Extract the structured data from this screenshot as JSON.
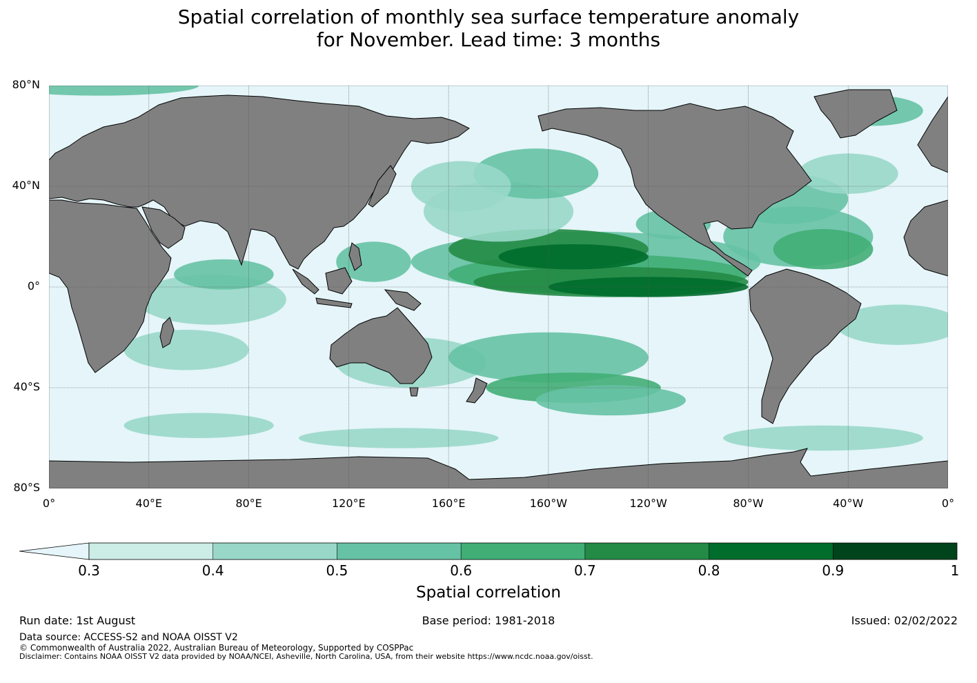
{
  "title": {
    "line1": "Spatial correlation of monthly sea surface temperature anomaly",
    "line2": "for November. Lead time: 3 months"
  },
  "map": {
    "projection": "equirectangular",
    "lon_range": [
      0,
      360
    ],
    "lat_range": [
      -80,
      80
    ],
    "ocean_color": "#e5f5f9",
    "land_color": "#808080",
    "gridlines": true,
    "lat_ticks": [
      {
        "label": "80°N",
        "lat": 80
      },
      {
        "label": "40°N",
        "lat": 40
      },
      {
        "label": "0°",
        "lat": 0
      },
      {
        "label": "40°S",
        "lat": -40
      },
      {
        "label": "80°S",
        "lat": -80
      }
    ],
    "lon_ticks": [
      {
        "label": "0°",
        "lon": 0
      },
      {
        "label": "40°E",
        "lon": 40
      },
      {
        "label": "80°E",
        "lon": 80
      },
      {
        "label": "120°E",
        "lon": 120
      },
      {
        "label": "160°E",
        "lon": 160
      },
      {
        "label": "160°W",
        "lon": 200
      },
      {
        "label": "120°W",
        "lon": 240
      },
      {
        "label": "80°W",
        "lon": 280
      },
      {
        "label": "40°W",
        "lon": 320
      },
      {
        "label": "0°",
        "lon": 360
      }
    ]
  },
  "colorbar": {
    "label": "Spatial correlation",
    "extend": "min",
    "under_color": "#e5f5f9",
    "levels": [
      {
        "from": 0.3,
        "to": 0.4,
        "color": "#ccece6"
      },
      {
        "from": 0.4,
        "to": 0.5,
        "color": "#99d8c9"
      },
      {
        "from": 0.5,
        "to": 0.6,
        "color": "#66c2a4"
      },
      {
        "from": 0.6,
        "to": 0.7,
        "color": "#41ae76"
      },
      {
        "from": 0.7,
        "to": 0.8,
        "color": "#238b45"
      },
      {
        "from": 0.8,
        "to": 0.9,
        "color": "#006d2c"
      },
      {
        "from": 0.9,
        "to": 1.0,
        "color": "#00441b"
      }
    ],
    "ticks": [
      "0.3",
      "0.4",
      "0.5",
      "0.6",
      "0.7",
      "0.8",
      "0.9",
      "1"
    ]
  },
  "footer": {
    "run_date": "Run date: 1st August",
    "base_period": "Base period: 1981-2018",
    "issued": "Issued: 02/02/2022",
    "data_source": "Data source: ACCESS-S2 and NOAA OISST V2",
    "copyright": "© Commonwealth of Australia 2022, Australian Bureau of Meteorology, Supported by COSPPac",
    "disclaimer": "Disclaimer: Contains NOAA OISST V2 data provided by NOAA/NCEI, Asheville, North Carolina, USA, from their website https://www.ncdc.noaa.gov/oisst."
  }
}
